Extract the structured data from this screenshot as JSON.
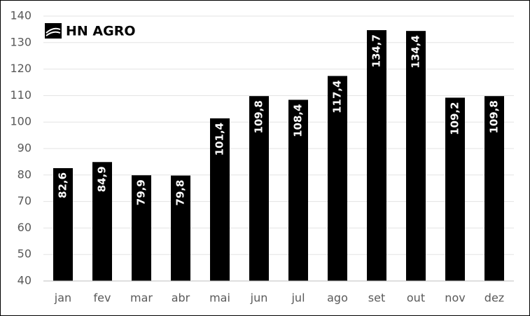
{
  "chart_data": {
    "type": "bar",
    "brand": "HN AGRO",
    "categories": [
      "jan",
      "fev",
      "mar",
      "abr",
      "mai",
      "jun",
      "jul",
      "ago",
      "set",
      "out",
      "nov",
      "dez"
    ],
    "values": [
      82.6,
      84.9,
      79.9,
      79.8,
      101.4,
      109.8,
      108.4,
      117.4,
      134.7,
      134.4,
      109.2,
      109.8
    ],
    "value_labels": [
      "82,6",
      "84,9",
      "79,9",
      "79,8",
      "101,4",
      "109,8",
      "108,4",
      "117,4",
      "134,7",
      "134,4",
      "109,2",
      "109,8"
    ],
    "color": "#000000",
    "ylim": [
      40,
      140
    ],
    "yticks": [
      40,
      50,
      60,
      70,
      80,
      90,
      100,
      110,
      120,
      130,
      140
    ],
    "grid": true
  }
}
